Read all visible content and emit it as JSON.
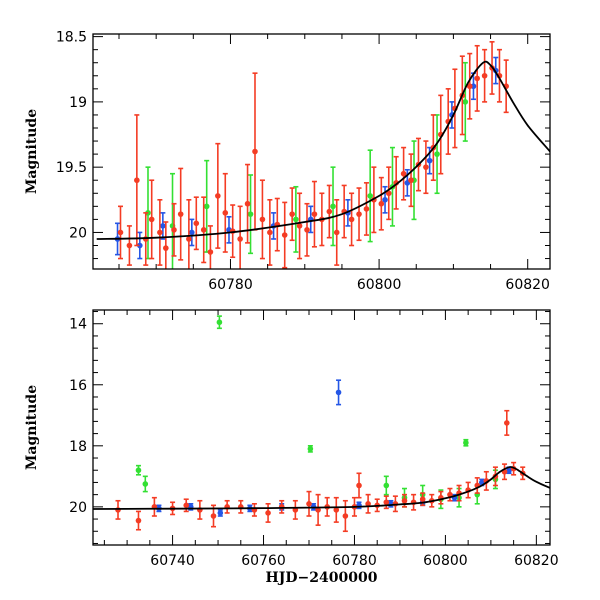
{
  "chart_data": [
    {
      "panel": "top",
      "type": "scatter",
      "title": "",
      "xlabel": "",
      "ylabel": "Magnitude",
      "xlim": [
        60761.5,
        60823
      ],
      "ylim": [
        20.28,
        18.48
      ],
      "y_inverted": true,
      "grid": false,
      "x_ticks": [
        60780,
        60800,
        60820
      ],
      "x_tick_labels": [
        "60780",
        "60800",
        "60820"
      ],
      "y_ticks": [
        18.5,
        19,
        19.5,
        20
      ],
      "y_tick_labels": [
        "18.5",
        "19",
        "19.5",
        "20"
      ],
      "colors": {
        "red": "#f43c24",
        "green": "#33e033",
        "blue": "#2456e6",
        "model": "#000000"
      },
      "model_curve": [
        [
          60762,
          20.05
        ],
        [
          60770,
          20.04
        ],
        [
          60780,
          20.0
        ],
        [
          60790,
          19.92
        ],
        [
          60795,
          19.86
        ],
        [
          60800,
          19.72
        ],
        [
          60803,
          19.6
        ],
        [
          60806,
          19.44
        ],
        [
          60808,
          19.3
        ],
        [
          60810,
          19.1
        ],
        [
          60812,
          18.85
        ],
        [
          60814,
          18.7
        ],
        [
          60815,
          18.72
        ],
        [
          60816,
          18.8
        ],
        [
          60818,
          19.0
        ],
        [
          60820,
          19.18
        ],
        [
          60823,
          19.38
        ]
      ],
      "series": [
        {
          "color": "red",
          "points": [
            [
              60765.2,
              20.0,
              0.2
            ],
            [
              60766.4,
              20.1,
              0.15
            ],
            [
              60767.4,
              19.6,
              0.5
            ],
            [
              60768.6,
              20.05,
              0.2
            ],
            [
              60769.4,
              19.9,
              0.3
            ],
            [
              60770.5,
              20.0,
              0.25
            ],
            [
              60771.3,
              20.12,
              0.2
            ],
            [
              60772.4,
              19.98,
              0.2
            ],
            [
              60773.3,
              19.86,
              0.35
            ],
            [
              60774.4,
              20.05,
              0.3
            ],
            [
              60775.4,
              19.93,
              0.2
            ],
            [
              60776.4,
              19.98,
              0.25
            ],
            [
              60777.3,
              20.15,
              0.2
            ],
            [
              60778.3,
              19.72,
              0.4
            ],
            [
              60779.3,
              19.85,
              0.3
            ],
            [
              60780.3,
              19.99,
              0.2
            ],
            [
              60781.3,
              20.05,
              0.25
            ],
            [
              60782.3,
              19.78,
              0.3
            ],
            [
              60783.3,
              19.38,
              0.6
            ],
            [
              60784.3,
              19.9,
              0.3
            ],
            [
              60785.3,
              20.0,
              0.25
            ],
            [
              60786.3,
              19.94,
              0.2
            ],
            [
              60787.3,
              20.02,
              0.25
            ],
            [
              60788.3,
              19.86,
              0.2
            ],
            [
              60789.3,
              19.95,
              0.25
            ],
            [
              60790.3,
              19.98,
              0.2
            ],
            [
              60791.3,
              19.86,
              0.25
            ],
            [
              60792.3,
              19.9,
              0.2
            ],
            [
              60793.3,
              19.84,
              0.2
            ],
            [
              60794.3,
              20.0,
              0.25
            ],
            [
              60795.3,
              19.84,
              0.2
            ],
            [
              60796.3,
              19.9,
              0.2
            ],
            [
              60797.3,
              19.86,
              0.2
            ],
            [
              60798.3,
              19.82,
              0.2
            ],
            [
              60799.3,
              19.75,
              0.25
            ],
            [
              60800.3,
              19.78,
              0.2
            ],
            [
              60801.3,
              19.7,
              0.2
            ],
            [
              60802.3,
              19.62,
              0.2
            ],
            [
              60803.3,
              19.55,
              0.2
            ],
            [
              60804.3,
              19.6,
              0.2
            ],
            [
              60805.3,
              19.48,
              0.2
            ],
            [
              60806.3,
              19.5,
              0.2
            ],
            [
              60807.3,
              19.35,
              0.25
            ],
            [
              60808.3,
              19.25,
              0.3
            ],
            [
              60809.3,
              19.15,
              0.25
            ],
            [
              60810.2,
              19.05,
              0.3
            ],
            [
              60811.2,
              18.95,
              0.3
            ],
            [
              60812.2,
              18.88,
              0.25
            ],
            [
              60813.2,
              18.82,
              0.25
            ],
            [
              60814.2,
              18.8,
              0.2
            ],
            [
              60815.2,
              18.74,
              0.2
            ],
            [
              60816.2,
              18.8,
              0.2
            ],
            [
              60817.1,
              18.88,
              0.2
            ]
          ]
        },
        {
          "color": "green",
          "points": [
            [
              60768.9,
              19.85,
              0.35
            ],
            [
              60772.2,
              19.95,
              0.4
            ],
            [
              60776.8,
              19.8,
              0.35
            ],
            [
              60782.7,
              19.86,
              0.3
            ],
            [
              60788.8,
              19.9,
              0.25
            ],
            [
              60793.8,
              19.8,
              0.3
            ],
            [
              60798.8,
              19.72,
              0.35
            ],
            [
              60801.8,
              19.65,
              0.3
            ],
            [
              60804.7,
              19.6,
              0.3
            ],
            [
              60807.8,
              19.4,
              0.3
            ],
            [
              60811.6,
              19.0,
              0.3
            ]
          ]
        },
        {
          "color": "blue",
          "points": [
            [
              60764.8,
              20.05,
              0.12
            ],
            [
              60767.8,
              20.1,
              0.1
            ],
            [
              60770.9,
              19.95,
              0.1
            ],
            [
              60774.8,
              20.0,
              0.1
            ],
            [
              60779.8,
              19.98,
              0.1
            ],
            [
              60785.8,
              19.95,
              0.1
            ],
            [
              60790.8,
              19.9,
              0.1
            ],
            [
              60795.8,
              19.85,
              0.1
            ],
            [
              60800.8,
              19.75,
              0.1
            ],
            [
              60803.8,
              19.62,
              0.1
            ],
            [
              60806.8,
              19.45,
              0.1
            ],
            [
              60809.8,
              19.1,
              0.1
            ],
            [
              60812.7,
              18.88,
              0.1
            ],
            [
              60815.7,
              18.76,
              0.1
            ]
          ]
        }
      ]
    },
    {
      "panel": "bottom",
      "type": "scatter",
      "title": "",
      "xlabel": "HJD−2400000",
      "ylabel": "Magnitude",
      "xlim": [
        60722.5,
        60823
      ],
      "ylim": [
        21.25,
        13.55
      ],
      "y_inverted": true,
      "grid": false,
      "x_ticks": [
        60740,
        60760,
        60780,
        60800,
        60820
      ],
      "x_tick_labels": [
        "60740",
        "60760",
        "60780",
        "60800",
        "60820"
      ],
      "y_ticks": [
        14,
        16,
        18,
        20
      ],
      "y_tick_labels": [
        "14",
        "16",
        "18",
        "20"
      ],
      "colors": {
        "red": "#f43c24",
        "green": "#33e033",
        "blue": "#2456e6",
        "model": "#000000"
      },
      "model_curve": [
        [
          60722.5,
          20.07
        ],
        [
          60740,
          20.06
        ],
        [
          60760,
          20.04
        ],
        [
          60780,
          20.0
        ],
        [
          60790,
          19.92
        ],
        [
          60795,
          19.86
        ],
        [
          60800,
          19.72
        ],
        [
          60803,
          19.6
        ],
        [
          60806,
          19.44
        ],
        [
          60808,
          19.3
        ],
        [
          60810,
          19.1
        ],
        [
          60812,
          18.85
        ],
        [
          60814,
          18.7
        ],
        [
          60815,
          18.72
        ],
        [
          60816,
          18.8
        ],
        [
          60818,
          19.0
        ],
        [
          60820,
          19.18
        ],
        [
          60823,
          19.38
        ]
      ],
      "series": [
        {
          "color": "red",
          "points": [
            [
              60728,
              20.1,
              0.3
            ],
            [
              60732.5,
              20.45,
              0.3
            ],
            [
              60736,
              20.0,
              0.3
            ],
            [
              60740,
              20.05,
              0.2
            ],
            [
              60743,
              19.95,
              0.2
            ],
            [
              60746,
              20.1,
              0.3
            ],
            [
              60749,
              20.3,
              0.35
            ],
            [
              60752,
              20.0,
              0.2
            ],
            [
              60755,
              20.0,
              0.2
            ],
            [
              60758,
              20.1,
              0.2
            ],
            [
              60761,
              20.2,
              0.3
            ],
            [
              60764,
              20.0,
              0.2
            ],
            [
              60767,
              20.1,
              0.3
            ],
            [
              60770,
              19.9,
              0.4
            ],
            [
              60772,
              20.1,
              0.5
            ],
            [
              60774,
              20.0,
              0.3
            ],
            [
              60776,
              20.1,
              0.4
            ],
            [
              60778,
              20.3,
              0.5
            ],
            [
              60780,
              20.0,
              0.3
            ],
            [
              60781,
              19.3,
              0.4
            ],
            [
              60783,
              19.9,
              0.3
            ],
            [
              60785,
              19.95,
              0.2
            ],
            [
              60787,
              19.85,
              0.2
            ],
            [
              60789,
              19.9,
              0.25
            ],
            [
              60791,
              19.8,
              0.2
            ],
            [
              60793,
              19.85,
              0.25
            ],
            [
              60795,
              19.75,
              0.2
            ],
            [
              60797,
              19.8,
              0.2
            ],
            [
              60799,
              19.7,
              0.2
            ],
            [
              60801,
              19.6,
              0.2
            ],
            [
              60803,
              19.55,
              0.25
            ],
            [
              60805,
              19.45,
              0.25
            ],
            [
              60807,
              19.3,
              0.25
            ],
            [
              60809,
              19.15,
              0.3
            ],
            [
              60811,
              19.0,
              0.3
            ],
            [
              60813,
              18.85,
              0.25
            ],
            [
              60813.5,
              17.25,
              0.4
            ],
            [
              60815,
              18.75,
              0.2
            ],
            [
              60817,
              18.9,
              0.2
            ]
          ]
        },
        {
          "color": "green",
          "points": [
            [
              60732.5,
              18.8,
              0.15
            ],
            [
              60734,
              19.25,
              0.25
            ],
            [
              60750.3,
              13.95,
              0.2
            ],
            [
              60770.3,
              18.1,
              0.1
            ],
            [
              60787,
              19.3,
              0.3
            ],
            [
              60791,
              19.7,
              0.3
            ],
            [
              60795,
              19.6,
              0.3
            ],
            [
              60799,
              19.75,
              0.3
            ],
            [
              60803,
              19.7,
              0.3
            ],
            [
              60804.5,
              17.9,
              0.1
            ],
            [
              60807,
              19.6,
              0.3
            ],
            [
              60811,
              19.1,
              0.3
            ]
          ]
        },
        {
          "color": "blue",
          "points": [
            [
              60737,
              20.05,
              0.1
            ],
            [
              60744,
              20.0,
              0.1
            ],
            [
              60750.5,
              20.2,
              0.1
            ],
            [
              60757,
              20.05,
              0.1
            ],
            [
              60764,
              20.0,
              0.1
            ],
            [
              60771,
              20.0,
              0.1
            ],
            [
              60776.5,
              16.25,
              0.4
            ],
            [
              60781,
              19.95,
              0.1
            ],
            [
              60788,
              19.9,
              0.1
            ],
            [
              60795,
              19.85,
              0.1
            ],
            [
              60802,
              19.7,
              0.1
            ],
            [
              60808,
              19.2,
              0.1
            ],
            [
              60814,
              18.8,
              0.1
            ]
          ]
        }
      ]
    }
  ]
}
